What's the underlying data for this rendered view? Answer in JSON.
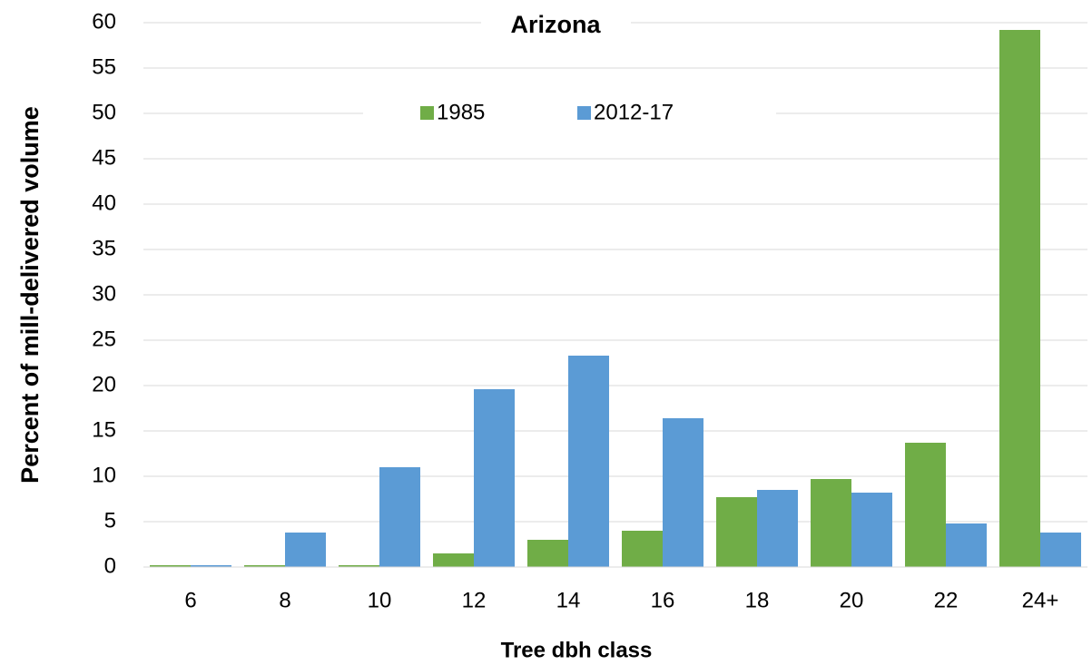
{
  "chart_data": {
    "type": "bar",
    "title": "Arizona",
    "x_label": "Tree dbh class",
    "y_label": "Percent of mill-delivered volume",
    "categories": [
      "6",
      "8",
      "10",
      "12",
      "14",
      "16",
      "18",
      "20",
      "22",
      "24+"
    ],
    "series": [
      {
        "name": "1985",
        "color": "#70ad47",
        "values": [
          0.2,
          0.2,
          0.2,
          1.5,
          3,
          4,
          7.7,
          9.7,
          13.7,
          59.2
        ]
      },
      {
        "name": "2012-17",
        "color": "#5b9bd5",
        "values": [
          0.2,
          3.8,
          11,
          19.6,
          23.3,
          16.4,
          8.5,
          8.2,
          4.8,
          3.8
        ]
      }
    ],
    "ylim": [
      0,
      60
    ],
    "yticks": [
      0,
      5,
      10,
      15,
      20,
      25,
      30,
      35,
      40,
      45,
      50,
      55,
      60
    ],
    "grid": true,
    "legend": "top"
  }
}
